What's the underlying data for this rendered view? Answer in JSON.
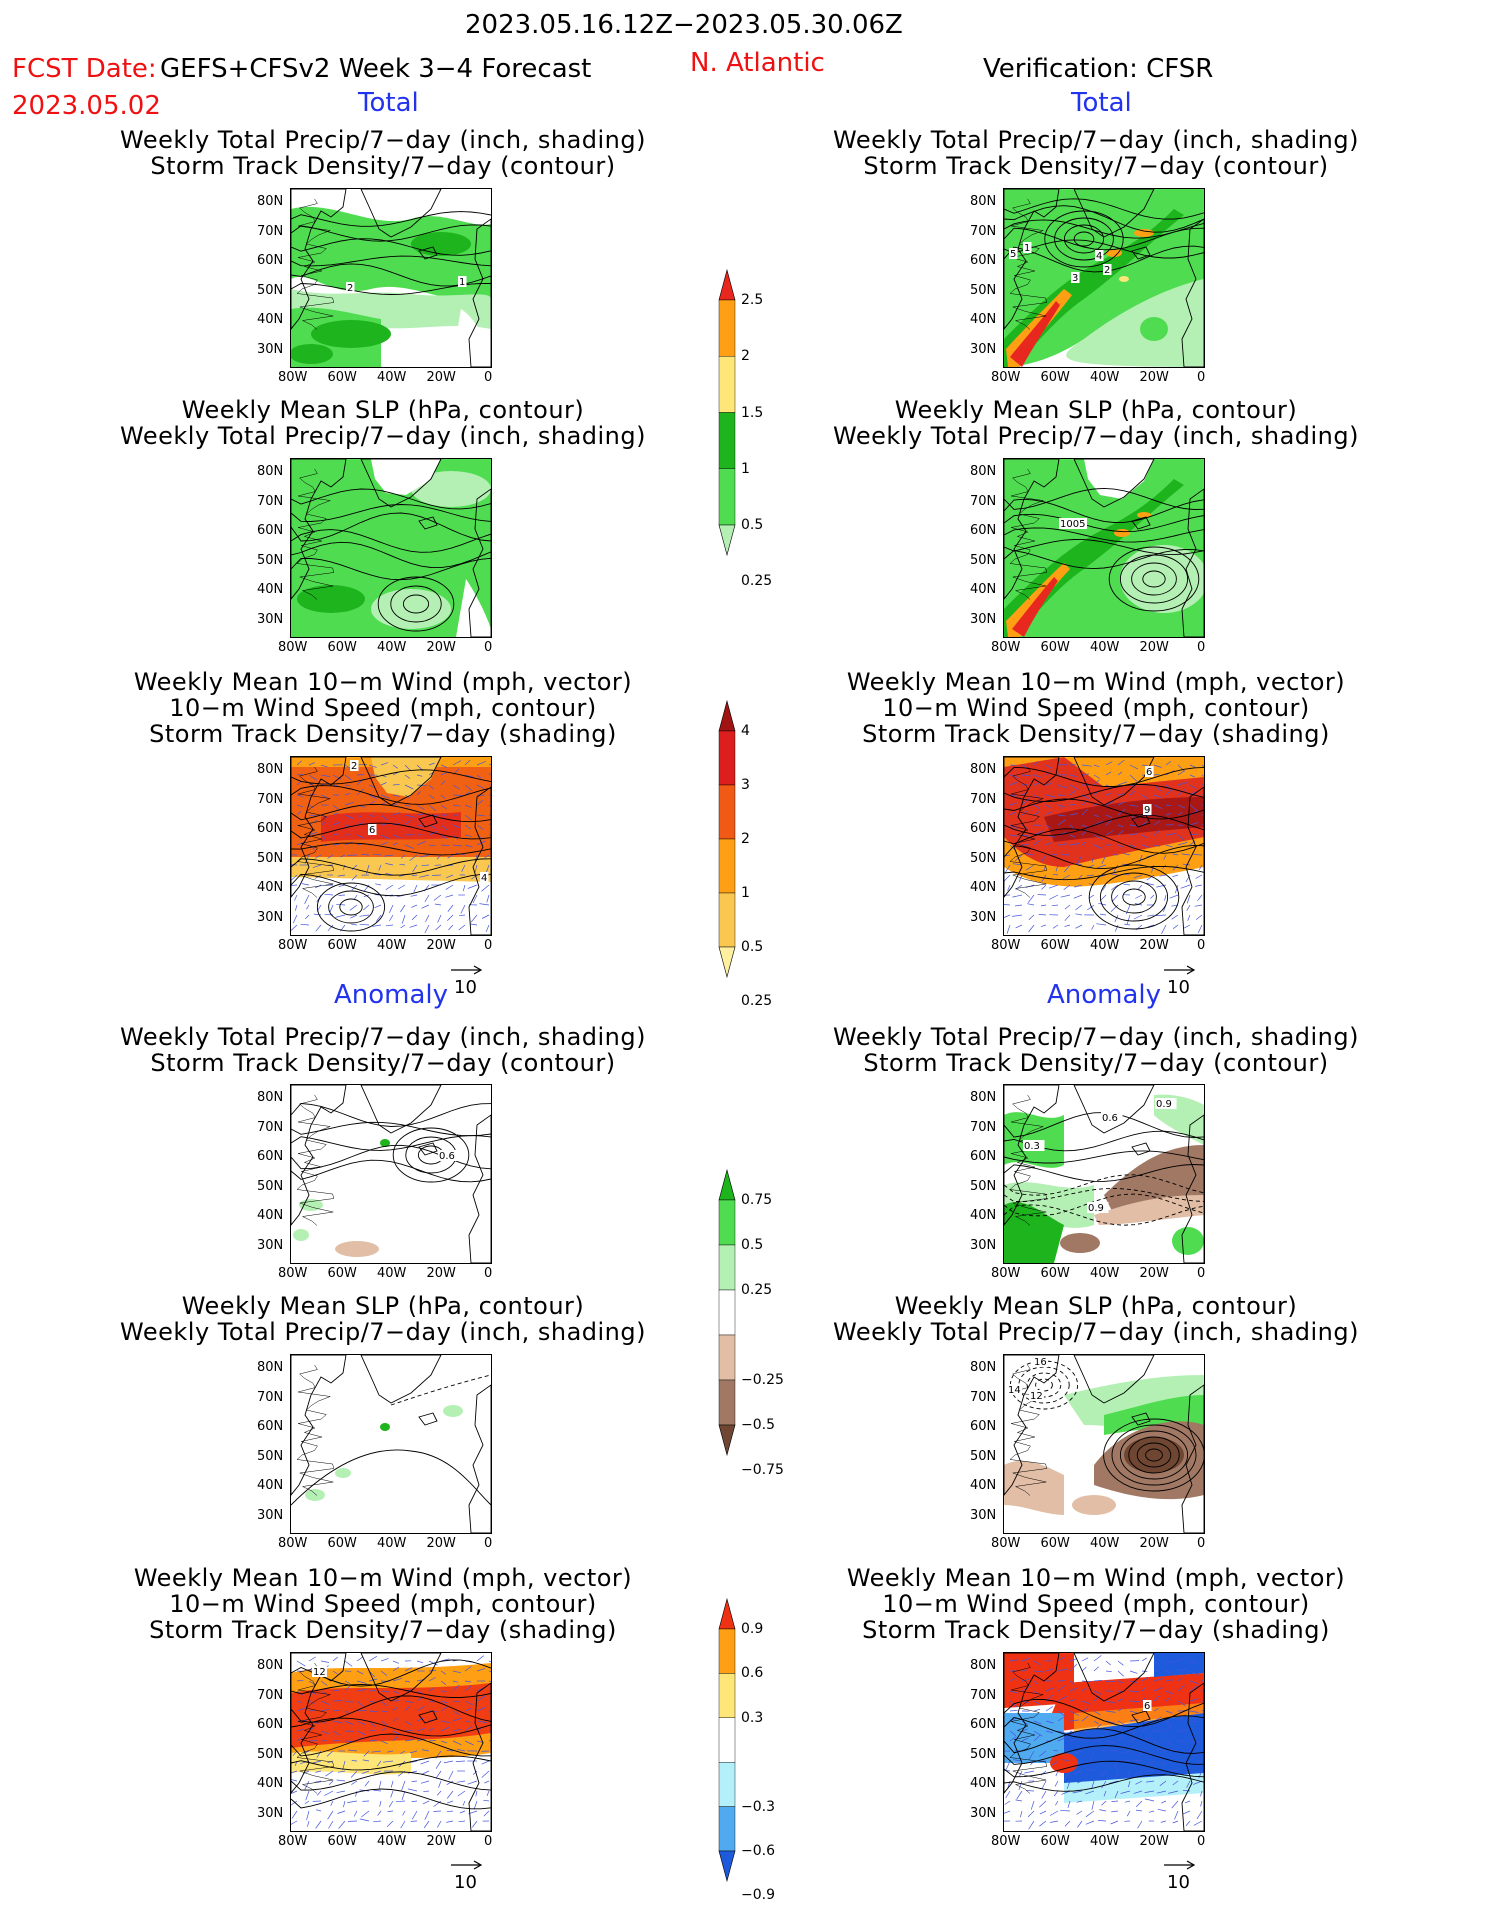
{
  "header": {
    "period": "2023.05.16.12Z−2023.05.30.06Z",
    "fcst_label": "FCST Date:",
    "fcst_date": "2023.05.02",
    "model": "GEFS+CFSv2 Week 3−4 Forecast",
    "region": "N. Atlantic",
    "verification": "Verification: CFSR"
  },
  "sections": {
    "total": "Total",
    "anomaly": "Anomaly"
  },
  "titles": {
    "precip_storm": [
      "Weekly Total Precip/7−day (inch, shading)",
      "Storm Track Density/7−day (contour)"
    ],
    "slp_precip": [
      "Weekly Mean SLP (hPa, contour)",
      "Weekly Total Precip/7−day (inch, shading)"
    ],
    "wind_storm": [
      "Weekly Mean 10−m Wind (mph, vector)",
      "10−m Wind Speed (mph, contour)",
      "Storm Track Density/7−day (shading)"
    ]
  },
  "axes": {
    "lat_labels": [
      "80N",
      "70N",
      "60N",
      "50N",
      "40N",
      "30N"
    ],
    "lon_labels": [
      "80W",
      "60W",
      "40W",
      "20W",
      "0"
    ]
  },
  "vector_ref": "10",
  "colorbars": {
    "precip_total": {
      "labels": [
        "2.5",
        "2",
        "1.5",
        "1",
        "0.5",
        "0.25"
      ],
      "colors": [
        "#e8281e",
        "#ffa014",
        "#ffe678",
        "#1eb41e",
        "#50dc50",
        "#b4f0b4"
      ]
    },
    "storm_total": {
      "labels": [
        "4",
        "3",
        "2",
        "1",
        "0.5",
        "0.25"
      ],
      "colors": [
        "#a01414",
        "#dc1e1e",
        "#f05a14",
        "#ffa014",
        "#fac850",
        "#fff0a0"
      ]
    },
    "precip_anom": {
      "labels": [
        "0.75",
        "0.5",
        "0.25",
        "−0.25",
        "−0.5",
        "−0.75"
      ],
      "colors": [
        "#1eb41e",
        "#50dc50",
        "#b4f0b4",
        "#ffffff",
        "#e1bea5",
        "#a07864",
        "#6e4632"
      ]
    },
    "storm_anom": {
      "labels": [
        "0.9",
        "0.6",
        "0.3",
        "−0.3",
        "−0.6",
        "−0.9"
      ],
      "colors": [
        "#f03214",
        "#ffa014",
        "#ffe678",
        "#ffffff",
        "#b4f0fa",
        "#50aaf0",
        "#1e5adc"
      ]
    }
  },
  "contour_labels": {
    "fp1": [
      "2",
      "1"
    ],
    "vp1": [
      "5",
      "1",
      "4",
      "3",
      "2"
    ],
    "vp2": [
      "1005"
    ],
    "fp3": [
      "2",
      "6",
      "4"
    ],
    "vp3": [
      "6",
      "9"
    ],
    "fa1": [
      "0.6"
    ],
    "va1": [
      "0.6",
      "0.9",
      "0.3",
      "0.9"
    ],
    "va2": [
      "16",
      "14",
      "12"
    ],
    "fa3": [
      "12"
    ],
    "va3": [
      "6"
    ]
  }
}
